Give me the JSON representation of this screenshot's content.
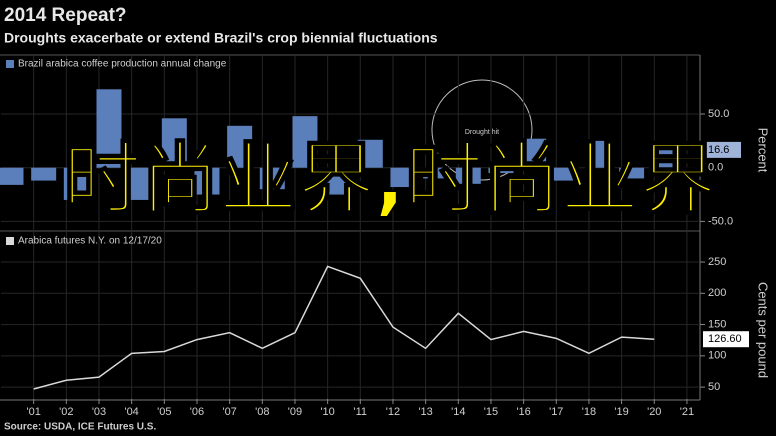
{
  "title": "2014 Repeat?",
  "subtitle": "Droughts exacerbate or extend Brazil's crop biennial fluctuations",
  "source": "Source: USDA, ICE Futures U.S.",
  "overlay_text": "时尚业界,时尚业界",
  "chart_data": [
    {
      "type": "bar",
      "color": "#5b7fba",
      "legend": "Brazil arabica coffee production annual change",
      "y_label": "Percent",
      "annotation": "Drought hit",
      "x": [
        2000,
        2001,
        2002,
        2003,
        2004,
        2005,
        2006,
        2007,
        2008,
        2009,
        2010,
        2011,
        2012,
        2013,
        2014,
        2015,
        2016,
        2017,
        2018,
        2019,
        2020
      ],
      "values": [
        -16,
        -12,
        -30,
        73,
        -30,
        46,
        -25,
        39,
        -20,
        48,
        -25,
        26,
        -18,
        -10,
        -15,
        -5,
        27,
        -12,
        25,
        -10,
        16.6
      ],
      "xlim": [
        2000,
        2021.4
      ],
      "ylim": [
        -58,
        104
      ],
      "yticks": [
        {
          "value": 50,
          "label": "50.0"
        },
        {
          "value": 0,
          "label": "0.0"
        },
        {
          "value": -50,
          "label": "-50.0"
        }
      ],
      "grid": true
    },
    {
      "type": "line",
      "color": "#d9d9d9",
      "legend": "Arabica futures N.Y. on 12/17/20",
      "y_label": "Cents per pound",
      "x": [
        2001,
        2002,
        2003,
        2004,
        2005,
        2006,
        2007,
        2008,
        2009,
        2010,
        2011,
        2012,
        2013,
        2014,
        2015,
        2016,
        2017,
        2018,
        2019,
        2020
      ],
      "values": [
        47,
        61,
        66,
        104,
        107,
        126,
        137,
        112,
        137,
        243,
        224,
        146,
        112,
        168,
        126,
        139,
        128,
        104,
        130,
        126.6
      ],
      "value_labels": [
        null,
        null,
        null,
        null,
        null,
        null,
        null,
        null,
        null,
        null,
        null,
        null,
        null,
        null,
        null,
        null,
        null,
        null,
        null,
        "126.60"
      ],
      "xlim": [
        2000,
        2021.4
      ],
      "ylim": [
        31,
        298
      ],
      "yticks": [
        250,
        200,
        150,
        100,
        50
      ],
      "xticks": [
        {
          "value": 2001,
          "label": "'01"
        },
        {
          "value": 2002,
          "label": "'02"
        },
        {
          "value": 2003,
          "label": "'03"
        },
        {
          "value": 2004,
          "label": "'04"
        },
        {
          "value": 2005,
          "label": "'05"
        },
        {
          "value": 2006,
          "label": "'06"
        },
        {
          "value": 2007,
          "label": "'07"
        },
        {
          "value": 2008,
          "label": "'08"
        },
        {
          "value": 2009,
          "label": "'09"
        },
        {
          "value": 2010,
          "label": "'10"
        },
        {
          "value": 2011,
          "label": "'11"
        },
        {
          "value": 2012,
          "label": "'12"
        },
        {
          "value": 2013,
          "label": "'13"
        },
        {
          "value": 2014,
          "label": "'14"
        },
        {
          "value": 2015,
          "label": "'15"
        },
        {
          "value": 2016,
          "label": "'16"
        },
        {
          "value": 2017,
          "label": "'17"
        },
        {
          "value": 2018,
          "label": "'18"
        },
        {
          "value": 2019,
          "label": "'19"
        },
        {
          "value": 2020,
          "label": "'20"
        },
        {
          "value": 2021,
          "label": "'21"
        }
      ],
      "grid": true
    }
  ]
}
